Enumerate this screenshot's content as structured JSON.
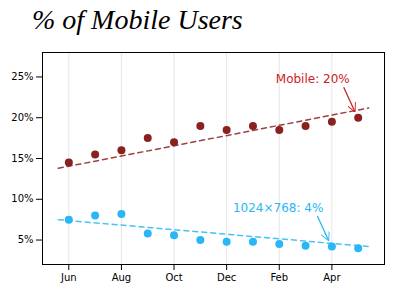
{
  "chart_data": {
    "type": "scatter",
    "title": "% of Mobile Users",
    "xlim": [
      -0.5,
      6.0
    ],
    "xticks": [
      {
        "value": 0,
        "label": "Jun"
      },
      {
        "value": 1,
        "label": "Aug"
      },
      {
        "value": 2,
        "label": "Oct"
      },
      {
        "value": 3,
        "label": "Dec"
      },
      {
        "value": 4,
        "label": "Feb"
      },
      {
        "value": 5,
        "label": "Apr"
      }
    ],
    "ylim": [
      2,
      28
    ],
    "yticks": [
      {
        "value": 5,
        "label": "5%"
      },
      {
        "value": 10,
        "label": "10%"
      },
      {
        "value": 15,
        "label": "15%"
      },
      {
        "value": 20,
        "label": "20%"
      },
      {
        "value": 25,
        "label": "25%"
      }
    ],
    "grid": "x",
    "series": [
      {
        "type": "line",
        "line_style": "dashed",
        "color": "#8b2020",
        "x": [
          -0.2,
          5.7
        ],
        "values": [
          13.8,
          21.2
        ]
      },
      {
        "type": "line",
        "line_style": "dashed",
        "color": "#29b6f6",
        "x": [
          -0.2,
          5.7
        ],
        "values": [
          7.5,
          4.2
        ]
      },
      {
        "type": "scatter",
        "color": "#8b2020",
        "x": [
          0,
          0.5,
          1.0,
          1.5,
          2.0,
          2.5,
          3.0,
          3.5,
          4.0,
          4.5,
          5.0,
          5.5
        ],
        "values": [
          14.5,
          15.5,
          16.0,
          17.5,
          17.0,
          19.0,
          18.5,
          19.0,
          18.5,
          19.0,
          19.5,
          20.0
        ]
      },
      {
        "type": "scatter",
        "color": "#29b6f6",
        "x": [
          0,
          0.5,
          1.0,
          1.5,
          2.0,
          2.5,
          3.0,
          3.5,
          4.0,
          4.5,
          5.0,
          5.5
        ],
        "values": [
          7.5,
          8.0,
          8.2,
          5.8,
          5.6,
          5.0,
          4.8,
          4.8,
          4.5,
          4.3,
          4.2,
          4.0
        ]
      }
    ],
    "annotations": [
      {
        "text": "Mobile: 20%",
        "x": 5.5,
        "y": 20.0,
        "color": "#cc2222"
      },
      {
        "text": "1024×768: 4%",
        "x": 5.0,
        "y": 4.2,
        "color": "#29b6f6"
      }
    ]
  }
}
